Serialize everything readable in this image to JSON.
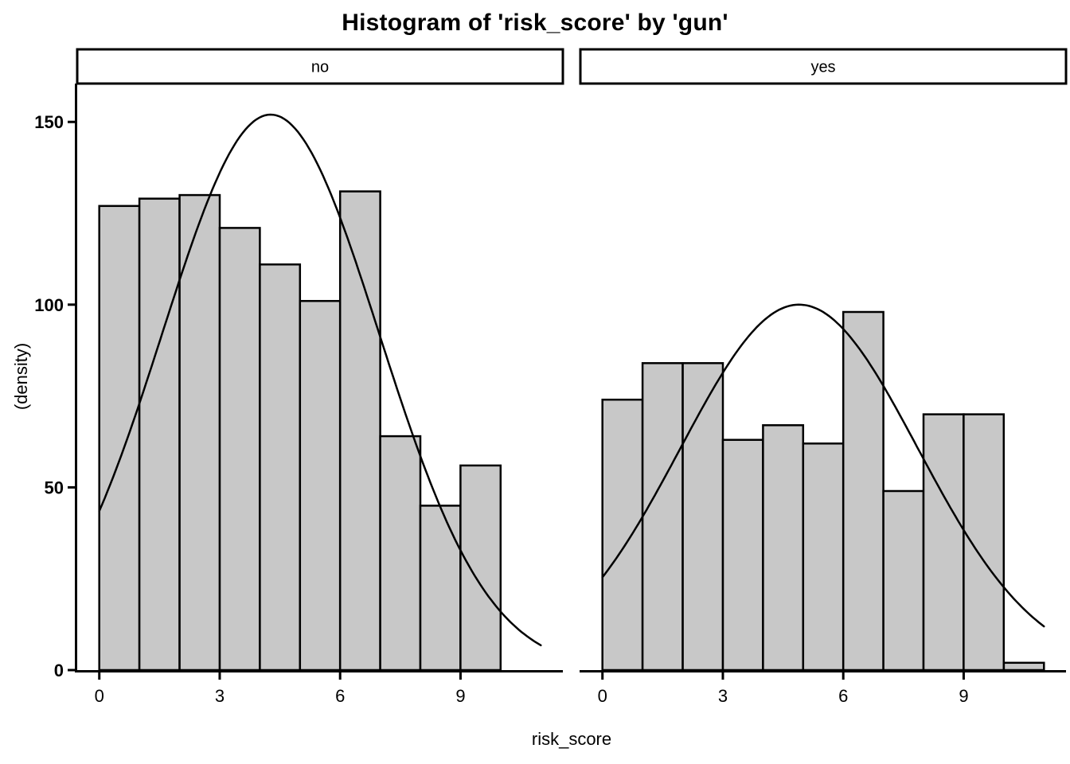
{
  "chart_data": {
    "type": "histogram",
    "title": "Histogram of 'risk_score' by 'gun'",
    "xlabel": "risk_score",
    "ylabel": "(density)",
    "facet_variable": "gun",
    "legend": "none",
    "grid": false,
    "x_ticks": [
      0,
      3,
      6,
      9
    ],
    "y_ticks": [
      0,
      50,
      100,
      150
    ],
    "xlim": [
      -0.55,
      11.55
    ],
    "ylim": [
      0,
      160.5
    ],
    "bin_width": 1,
    "facets": [
      {
        "label": "no",
        "bin_start": 0,
        "bin_edges": [
          0,
          1,
          2,
          3,
          4,
          5,
          6,
          7,
          8,
          9,
          10
        ],
        "counts": [
          127,
          129,
          130,
          121,
          111,
          101,
          131,
          64,
          45,
          56
        ],
        "curve": {
          "shape": "normal",
          "amplitude": 152,
          "mean": 4.27,
          "sd": 2.7,
          "x_start": 0,
          "x_end": 11
        }
      },
      {
        "label": "yes",
        "bin_start": 0,
        "bin_edges": [
          0,
          1,
          2,
          3,
          4,
          5,
          6,
          7,
          8,
          9,
          10,
          11
        ],
        "counts": [
          74,
          84,
          84,
          63,
          67,
          62,
          98,
          49,
          70,
          70,
          2
        ],
        "curve": {
          "shape": "normal",
          "amplitude": 100,
          "mean": 4.9,
          "sd": 2.96,
          "x_start": 0,
          "x_end": 11
        }
      }
    ],
    "colors": {
      "bar_fill": "#c8c8c8",
      "bar_stroke": "#000000",
      "curve": "#000000",
      "axis": "#000000",
      "text": "#000000",
      "strip_fill": "#ffffff",
      "strip_border": "#000000",
      "background": "#ffffff"
    }
  }
}
